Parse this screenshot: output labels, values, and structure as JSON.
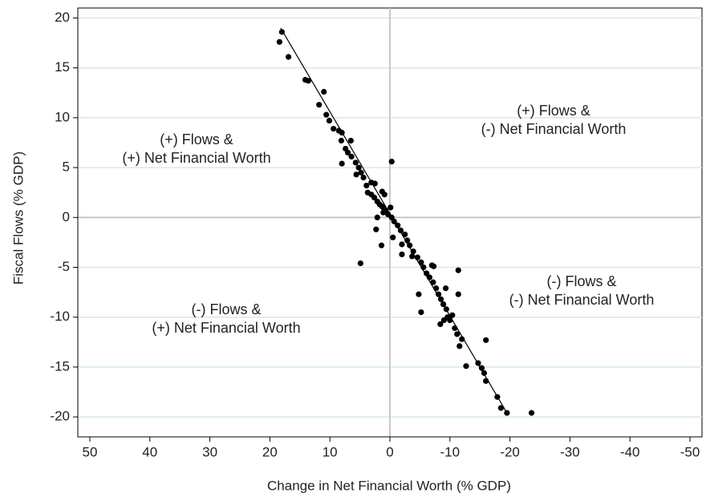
{
  "chart_data": {
    "type": "scatter",
    "xlabel": "Change in Net Financial Worth (% GDP)",
    "ylabel": "Fiscal Flows (% GDP)",
    "annotations": [
      [
        "(+) Flows &",
        "(+) Net Financial Worth"
      ],
      [
        "(+) Flows &",
        "(-) Net Financial Worth"
      ],
      [
        "(-) Flows &",
        "(-) Net Financial Worth"
      ],
      [
        "(-) Flows &",
        "(+) Net Financial Worth"
      ]
    ],
    "xlim": [
      52,
      -52
    ],
    "ylim": [
      -22,
      21
    ],
    "xticks": [
      50,
      40,
      30,
      20,
      10,
      0,
      -10,
      -20,
      -30,
      -40,
      -50
    ],
    "yticks": [
      -20,
      -15,
      -10,
      -5,
      0,
      5,
      10,
      15,
      20
    ],
    "grid": true,
    "grid_color": "#d6e9ea",
    "zero_line_color": "#c8c8c8",
    "series": [
      {
        "color": "#000000",
        "x": [
          18.0,
          18.4,
          16.9,
          14.1,
          13.6,
          11.0,
          11.8,
          10.6,
          10.1,
          9.4,
          8.5,
          8.0,
          8.1,
          7.4,
          7.0,
          6.4,
          6.5,
          5.7,
          8.0,
          5.2,
          4.8,
          4.4,
          3.7,
          3.1,
          2.6,
          2.1,
          1.7,
          0.9,
          1.1,
          -0.3,
          0.7,
          0.3,
          -0.3,
          -0.7,
          -1.3,
          -1.8,
          -0.1,
          -0.5,
          2.3,
          1.4,
          1.3,
          1.1,
          -2.5,
          -2.9,
          -3.3,
          -2.0,
          -3.9,
          -4.6,
          -5.2,
          -5.6,
          -6.1,
          4.9,
          -6.6,
          -7.2,
          -7.0,
          -7.3,
          -4.8,
          -7.7,
          -8.1,
          -8.5,
          -5.2,
          -8.9,
          -9.3,
          -9.4,
          -8.4,
          -9.0,
          -9.6,
          -10.0,
          -10.4,
          -10.8,
          -11.2,
          -11.4,
          -11.4,
          -11.6,
          -12.0,
          -12.7,
          -14.7,
          -15.3,
          -15.7,
          -16.0,
          -16.0,
          -17.9,
          -18.5,
          -19.5,
          -23.6,
          1.3,
          3.9,
          5.6,
          3.1,
          2.1,
          2.5,
          -3.7,
          -2.0
        ],
        "values": [
          18.6,
          17.6,
          16.1,
          13.8,
          13.7,
          12.6,
          11.3,
          10.3,
          9.7,
          8.9,
          8.7,
          8.5,
          7.7,
          6.9,
          6.5,
          6.1,
          7.7,
          5.5,
          5.4,
          5.0,
          4.5,
          4.0,
          2.5,
          2.3,
          2.0,
          1.6,
          1.3,
          2.3,
          1.0,
          5.6,
          0.7,
          0.3,
          0.0,
          -0.4,
          -0.8,
          -1.3,
          1.0,
          -2.0,
          -1.2,
          -2.8,
          2.6,
          0.5,
          -1.7,
          -2.3,
          -2.8,
          -3.7,
          -3.4,
          -4.0,
          -4.5,
          -5.0,
          -5.6,
          -4.6,
          -6.0,
          -6.5,
          -4.8,
          -4.9,
          -7.7,
          -7.1,
          -7.7,
          -8.2,
          -9.5,
          -8.7,
          -7.1,
          -9.2,
          -10.7,
          -10.3,
          -10.0,
          -10.3,
          -9.8,
          -11.1,
          -11.7,
          -5.3,
          -7.7,
          -12.9,
          -12.2,
          -14.9,
          -14.6,
          -15.1,
          -15.6,
          -16.4,
          -12.3,
          -18.0,
          -19.1,
          -19.6,
          -19.6,
          1.1,
          3.2,
          4.3,
          3.5,
          0.0,
          3.4,
          -3.9,
          -2.7
        ]
      }
    ],
    "fit": {
      "color": "#000000",
      "x": [
        18.2,
        -19.6
      ],
      "y": [
        19.0,
        -19.7
      ]
    }
  }
}
